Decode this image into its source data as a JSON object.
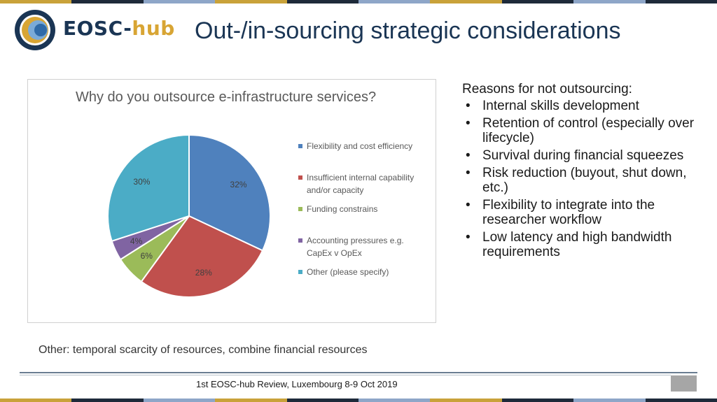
{
  "logo": {
    "text_main": "EOSC-",
    "text_accent": "hub"
  },
  "slide_title": "Out-/in-sourcing strategic considerations",
  "colors": {
    "title": "#1a3554",
    "accent_gold": "#d8a534",
    "stripe": [
      "#c9a23a",
      "#1e2a3a",
      "#8ea6c8",
      "#c9a23a",
      "#1e2a3a",
      "#8ea6c8",
      "#c9a23a",
      "#1e2a3a",
      "#8ea6c8",
      "#1e2a3a"
    ]
  },
  "chart_data": {
    "type": "pie",
    "title": "Why do you outsource e-infrastructure services?",
    "legend_position": "right",
    "slices": [
      {
        "label": "Flexibility and cost efficiency",
        "value": 32,
        "value_label": "32%",
        "color": "#4f81bd"
      },
      {
        "label": "Insufficient internal capability and/or capacity",
        "value": 28,
        "value_label": "28%",
        "color": "#c0504d"
      },
      {
        "label": "Funding constrains",
        "value": 6,
        "value_label": "6%",
        "color": "#9bbb59"
      },
      {
        "label": "Accounting pressures e.g. CapEx v OpEx",
        "value": 4,
        "value_label": "4%",
        "color": "#8064a2"
      },
      {
        "label": "Other (please specify)",
        "value": 30,
        "value_label": "30%",
        "color": "#4bacc6"
      }
    ]
  },
  "reasons": {
    "heading": "Reasons for not outsourcing:",
    "bullet": "•",
    "items": [
      "Internal skills development",
      "Retention of control (especially over lifecycle)",
      "Survival during financial squeezes",
      "Risk reduction (buyout, shut down, etc.)",
      "Flexibility to integrate into the researcher workflow",
      "Low latency and high bandwidth requirements"
    ]
  },
  "note": "Other: temporal scarcity of resources, combine financial resources",
  "footer": {
    "text": "1st EOSC-hub Review, Luxembourg 8-9 Oct 2019"
  }
}
